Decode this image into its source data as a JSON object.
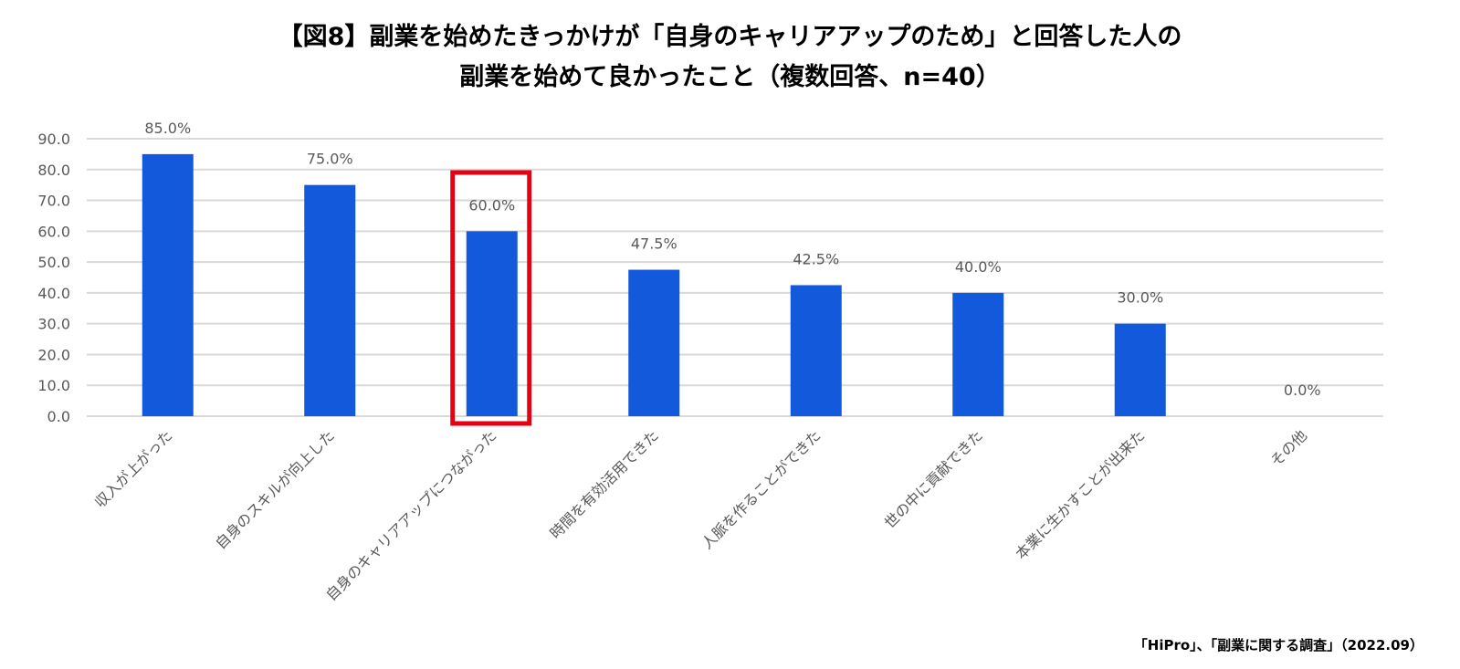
{
  "title_line1": "【図8】副業を始めたきっかけが「自身のキャリアアップのため」と回答した人の",
  "title_line2": "副業を始めて良かったこと（複数回答、n=40）",
  "source": "「HiPro」、「副業に関する調査」（2022.09）",
  "colors": {
    "bar": "#1259dc",
    "highlight": "#e60012",
    "grid": "#d9d9d9",
    "text": "#595959"
  },
  "chart_data": {
    "type": "bar",
    "categories": [
      "収入が上がった",
      "自身のスキルが向上した",
      "自身のキャリアアップにつながった",
      "時間を有効活用できた",
      "人脈を作ることができた",
      "世の中に貢献できた",
      "本業に生かすことが出来た",
      "その他"
    ],
    "values": [
      85.0,
      75.0,
      60.0,
      47.5,
      42.5,
      40.0,
      30.0,
      0.0
    ],
    "data_labels": [
      "85.0%",
      "75.0%",
      "60.0%",
      "47.5%",
      "42.5%",
      "40.0%",
      "30.0%",
      "0.0%"
    ],
    "y_ticks": [
      "0.0",
      "10.0",
      "20.0",
      "30.0",
      "40.0",
      "50.0",
      "60.0",
      "70.0",
      "80.0",
      "90.0"
    ],
    "ylim": [
      0,
      90
    ],
    "grid": true,
    "legend": "none",
    "highlighted_category": "自身のキャリアアップにつながった"
  }
}
